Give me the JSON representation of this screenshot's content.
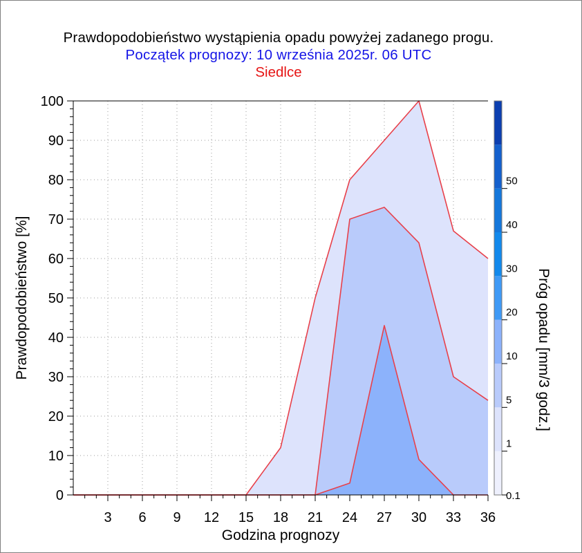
{
  "title": "Prawdopodobieństwo wystąpienia opadu powyżej zadanego progu.",
  "subtitle": "Początek prognozy: 10 września 2025r. 06 UTC",
  "location": "Siedlce",
  "colors": {
    "title": "#000000",
    "subtitle": "#1515e6",
    "location": "#e61515",
    "series_line": "#e8404a",
    "layer_0_1": "#dde3fc",
    "layer_1": "#b9cbfb",
    "layer_5": "#8cb2fb"
  },
  "chart_data": {
    "type": "area",
    "xlabel": "Godzina prognozy",
    "ylabel": "Prawdopodobieństwo [%]",
    "x": [
      0,
      3,
      6,
      9,
      12,
      15,
      18,
      21,
      24,
      27,
      30,
      33,
      36
    ],
    "xticks": [
      3,
      6,
      9,
      12,
      15,
      18,
      21,
      24,
      27,
      30,
      33,
      36
    ],
    "yticks": [
      0,
      10,
      20,
      30,
      40,
      50,
      60,
      70,
      80,
      90,
      100
    ],
    "xlim": [
      0,
      36
    ],
    "ylim": [
      0,
      100
    ],
    "grid": true,
    "series": [
      {
        "threshold": 0.1,
        "color": "#dde3fc",
        "values": [
          0,
          0,
          0,
          0,
          0,
          0,
          12,
          50,
          80,
          90,
          100,
          67,
          60
        ]
      },
      {
        "threshold": 1,
        "color": "#b9cbfb",
        "values": [
          0,
          0,
          0,
          0,
          0,
          0,
          0,
          0,
          70,
          73,
          64,
          30,
          24
        ]
      },
      {
        "threshold": 5,
        "color": "#8cb2fb",
        "values": [
          0,
          0,
          0,
          0,
          0,
          0,
          0,
          0,
          3,
          43,
          9,
          0,
          0
        ]
      }
    ],
    "colorbar": {
      "label": "Próg opadu [mm/3 godz.]",
      "levels": [
        0.1,
        1,
        5,
        10,
        20,
        30,
        40,
        50
      ],
      "colors": [
        "#eef0fd",
        "#dde3fc",
        "#b9cbfb",
        "#8cb2fb",
        "#3f9af6",
        "#1289ec",
        "#1577db",
        "#1460cd",
        "#0c3fb0"
      ]
    }
  }
}
